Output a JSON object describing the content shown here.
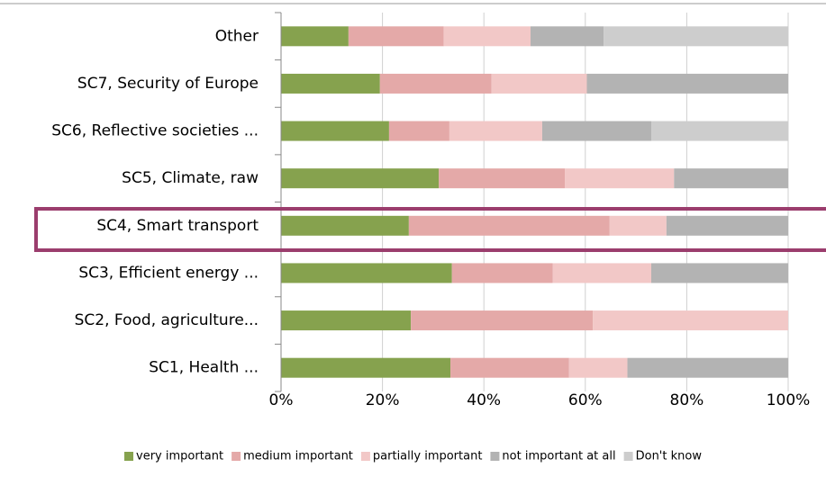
{
  "chart_data": {
    "type": "stacked-bar-horizontal",
    "categories": [
      "Other",
      "SC7, Security of Europe",
      "SC6, Reflective societies ...",
      "SC5, Climate, raw",
      "SC4, Smart transport",
      "SC3, Efficient energy ...",
      "SC2, Food, agriculture...",
      "SC1, Health ..."
    ],
    "series": [
      {
        "name": "very important",
        "color": "#86a24e",
        "values": [
          13.3,
          19.5,
          21.3,
          31.1,
          25.2,
          33.7,
          25.6,
          33.4
        ]
      },
      {
        "name": "medium important",
        "color": "#e4a9a8",
        "values": [
          18.8,
          22,
          11.9,
          24.9,
          39.6,
          19.9,
          35.9,
          23.4
        ]
      },
      {
        "name": "partially important",
        "color": "#f2c8c7",
        "values": [
          17.1,
          18.8,
          18.3,
          21.5,
          11.2,
          19.4,
          38.5,
          11.5
        ]
      },
      {
        "name": "not important at all",
        "color": "#b3b3b3",
        "values": [
          14.4,
          39.7,
          21.5,
          22.5,
          24,
          27,
          0,
          31.7
        ]
      },
      {
        "name": "Don't know",
        "color": "#cdcdcd",
        "values": [
          36.4,
          0,
          27,
          0,
          0,
          0,
          0,
          0
        ]
      }
    ],
    "xlim": [
      0,
      100
    ],
    "xticks": [
      {
        "value": 0,
        "label": "0%"
      },
      {
        "value": 20,
        "label": "20%"
      },
      {
        "value": 40,
        "label": "40%"
      },
      {
        "value": 60,
        "label": "60%"
      },
      {
        "value": 80,
        "label": "80%"
      },
      {
        "value": 100,
        "label": "100%"
      }
    ],
    "grid": true,
    "legend": "bottom"
  }
}
